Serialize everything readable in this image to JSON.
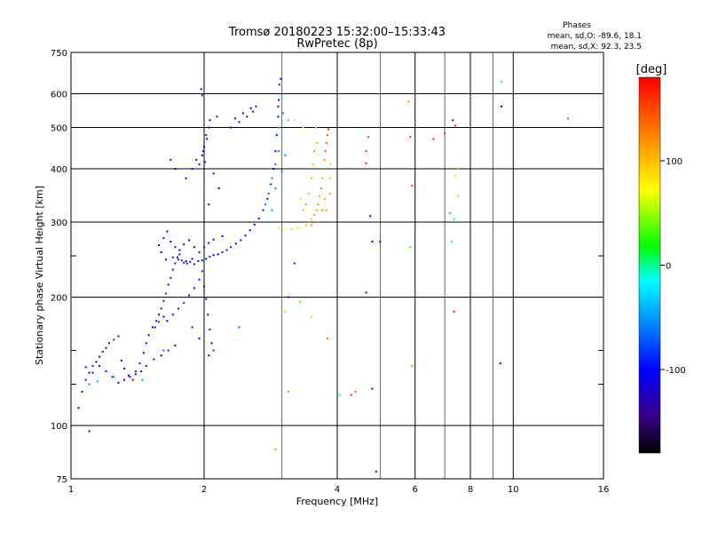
{
  "header": {
    "title": "Tromsø 20180223 15:32:00–15:33:43",
    "subtitle": "RwPretec (8p)"
  },
  "stats": {
    "heading": "Phases",
    "line_o": "mean, sd,O: -89.6, 18.1",
    "line_x": "mean, sd,X: 92.3, 23.5"
  },
  "colorbar": {
    "label": "[deg]",
    "ticks": [
      {
        "value": 100,
        "label": "100"
      },
      {
        "value": 0,
        "label": "0"
      },
      {
        "value": -100,
        "label": "-100"
      }
    ],
    "range": [
      -180,
      180
    ]
  },
  "chart_data": {
    "type": "scatter",
    "xlabel": "Frequency [MHz]",
    "ylabel": "Stationary phase Virtual Height [km]",
    "xscale": "log",
    "yscale": "log",
    "xlim": [
      1,
      16
    ],
    "ylim": [
      75,
      750
    ],
    "x_ticks": [
      1,
      2,
      4,
      6,
      8,
      10,
      16
    ],
    "x_tick_labels": [
      "1",
      "2",
      "4",
      "6",
      "8",
      "10",
      "16"
    ],
    "x_minor_ticks": [
      3,
      5,
      7,
      9
    ],
    "y_ticks": [
      75,
      100,
      200,
      300,
      400,
      500,
      600,
      750
    ],
    "y_tick_labels": [
      "75",
      "100",
      "200",
      "300",
      "400",
      "500",
      "600",
      "750"
    ],
    "y_minor_ticks": [
      125,
      150,
      250
    ],
    "grid": true,
    "color_dimension": "phase [deg]",
    "points": [
      [
        1.04,
        110,
        -110
      ],
      [
        1.06,
        120,
        -100
      ],
      [
        1.08,
        128,
        -95
      ],
      [
        1.1,
        133,
        -105
      ],
      [
        1.12,
        138,
        -90
      ],
      [
        1.14,
        141,
        -110
      ],
      [
        1.16,
        145,
        -100
      ],
      [
        1.18,
        149,
        -95
      ],
      [
        1.2,
        152,
        -115
      ],
      [
        1.22,
        156,
        -100
      ],
      [
        1.25,
        159,
        -90
      ],
      [
        1.28,
        162,
        -110
      ],
      [
        1.3,
        142,
        -105
      ],
      [
        1.32,
        136,
        -95
      ],
      [
        1.35,
        131,
        -100
      ],
      [
        1.38,
        128,
        -115
      ],
      [
        1.4,
        134,
        -90
      ],
      [
        1.43,
        140,
        -100
      ],
      [
        1.46,
        148,
        -110
      ],
      [
        1.48,
        156,
        -95
      ],
      [
        1.5,
        163,
        -100
      ],
      [
        1.53,
        170,
        -120
      ],
      [
        1.56,
        176,
        -105
      ],
      [
        1.58,
        182,
        -95
      ],
      [
        1.6,
        188,
        -100
      ],
      [
        1.62,
        196,
        -110
      ],
      [
        1.64,
        204,
        -90
      ],
      [
        1.66,
        214,
        -100
      ],
      [
        1.68,
        222,
        -115
      ],
      [
        1.7,
        232,
        -105
      ],
      [
        1.72,
        240,
        -95
      ],
      [
        1.74,
        248,
        -110
      ],
      [
        1.76,
        252,
        -100
      ],
      [
        1.78,
        244,
        -90
      ],
      [
        1.8,
        241,
        -105
      ],
      [
        1.83,
        240,
        -115
      ],
      [
        1.86,
        242,
        -100
      ],
      [
        1.9,
        239,
        -95
      ],
      [
        1.94,
        243,
        -110
      ],
      [
        1.98,
        244,
        -100
      ],
      [
        2.02,
        246,
        -105
      ],
      [
        2.06,
        249,
        -90
      ],
      [
        2.1,
        251,
        -110
      ],
      [
        2.15,
        252,
        -100
      ],
      [
        2.2,
        255,
        -95
      ],
      [
        2.25,
        258,
        -105
      ],
      [
        2.3,
        262,
        -110
      ],
      [
        2.36,
        267,
        -100
      ],
      [
        2.42,
        272,
        -95
      ],
      [
        2.48,
        279,
        -105
      ],
      [
        2.54,
        287,
        -100
      ],
      [
        2.6,
        296,
        -110
      ],
      [
        2.66,
        306,
        -95
      ],
      [
        2.72,
        320,
        -100
      ],
      [
        2.78,
        340,
        -105
      ],
      [
        2.83,
        368,
        -90
      ],
      [
        2.87,
        400,
        -110
      ],
      [
        2.9,
        440,
        -100
      ],
      [
        2.92,
        480,
        -95
      ],
      [
        2.94,
        530,
        -105
      ],
      [
        2.95,
        580,
        -120
      ],
      [
        2.96,
        630,
        -130
      ],
      [
        2.98,
        650,
        -90
      ],
      [
        3.0,
        590,
        -20
      ],
      [
        2.94,
        560,
        -140
      ],
      [
        1.55,
        170,
        -90
      ],
      [
        1.58,
        175,
        -80
      ],
      [
        1.62,
        180,
        -100
      ],
      [
        1.65,
        176,
        -110
      ],
      [
        1.7,
        182,
        -95
      ],
      [
        1.75,
        188,
        -100
      ],
      [
        1.8,
        194,
        -90
      ],
      [
        1.85,
        202,
        -105
      ],
      [
        1.9,
        210,
        -110
      ],
      [
        1.95,
        220,
        -100
      ],
      [
        1.98,
        230,
        -95
      ],
      [
        2.0,
        212,
        -105
      ],
      [
        2.02,
        198,
        -100
      ],
      [
        2.04,
        182,
        -110
      ],
      [
        2.06,
        168,
        -95
      ],
      [
        2.08,
        156,
        -100
      ],
      [
        2.1,
        150,
        -85
      ],
      [
        2.05,
        146,
        -95
      ],
      [
        1.95,
        160,
        -100
      ],
      [
        1.88,
        170,
        -110
      ],
      [
        1.72,
        154,
        -100
      ],
      [
        1.66,
        150,
        -90
      ],
      [
        1.6,
        146,
        -105
      ],
      [
        1.54,
        143,
        -100
      ],
      [
        1.48,
        138,
        -110
      ],
      [
        1.44,
        134,
        -95
      ],
      [
        1.4,
        132,
        -100
      ],
      [
        1.36,
        130,
        -120
      ],
      [
        1.32,
        128,
        -105
      ],
      [
        1.28,
        126,
        -100
      ],
      [
        1.24,
        130,
        -90
      ],
      [
        1.2,
        134,
        -110
      ],
      [
        1.16,
        138,
        -100
      ],
      [
        1.12,
        133,
        -95
      ],
      [
        1.08,
        137,
        -105
      ],
      [
        1.1,
        125,
        -60
      ],
      [
        1.15,
        127,
        -40
      ],
      [
        1.25,
        130,
        -45
      ],
      [
        1.45,
        128,
        -50
      ],
      [
        1.62,
        150,
        -60
      ],
      [
        1.6,
        255,
        -100
      ],
      [
        1.58,
        265,
        -110
      ],
      [
        1.62,
        275,
        -95
      ],
      [
        1.65,
        285,
        -100
      ],
      [
        1.68,
        270,
        -105
      ],
      [
        1.72,
        262,
        -110
      ],
      [
        1.76,
        258,
        -100
      ],
      [
        1.8,
        266,
        -95
      ],
      [
        1.85,
        272,
        -105
      ],
      [
        1.9,
        262,
        -110
      ],
      [
        1.95,
        255,
        -100
      ],
      [
        2.0,
        262,
        -90
      ],
      [
        2.05,
        268,
        -105
      ],
      [
        2.1,
        273,
        -100
      ],
      [
        2.2,
        278,
        -110
      ],
      [
        1.64,
        245,
        -100
      ],
      [
        1.7,
        248,
        -95
      ],
      [
        1.75,
        245,
        -110
      ],
      [
        1.82,
        243,
        -100
      ],
      [
        1.88,
        246,
        -105
      ],
      [
        1.92,
        420,
        -130
      ],
      [
        1.95,
        410,
        -140
      ],
      [
        1.98,
        430,
        -120
      ],
      [
        2.0,
        450,
        -130
      ],
      [
        2.02,
        480,
        -125
      ],
      [
        2.05,
        500,
        -140
      ],
      [
        2.06,
        520,
        -135
      ],
      [
        2.03,
        470,
        -120
      ],
      [
        1.99,
        440,
        -130
      ],
      [
        2.01,
        415,
        -140
      ],
      [
        1.98,
        595,
        -130
      ],
      [
        1.97,
        615,
        -140
      ],
      [
        2.14,
        530,
        -110
      ],
      [
        1.68,
        420,
        -120
      ],
      [
        1.72,
        400,
        -110
      ],
      [
        1.82,
        380,
        -100
      ],
      [
        1.88,
        400,
        -110
      ],
      [
        2.1,
        390,
        -100
      ],
      [
        2.16,
        360,
        -105
      ],
      [
        2.05,
        330,
        -100
      ],
      [
        2.3,
        500,
        -95
      ],
      [
        2.4,
        515,
        -100
      ],
      [
        2.5,
        530,
        -105
      ],
      [
        2.58,
        545,
        -100
      ],
      [
        2.62,
        560,
        -95
      ],
      [
        2.55,
        555,
        -110
      ],
      [
        2.45,
        540,
        -100
      ],
      [
        2.35,
        525,
        -105
      ],
      [
        2.75,
        330,
        -60
      ],
      [
        2.8,
        350,
        -70
      ],
      [
        2.85,
        380,
        -55
      ],
      [
        2.9,
        410,
        -65
      ],
      [
        2.95,
        440,
        -60
      ],
      [
        2.8,
        300,
        -50
      ],
      [
        2.85,
        320,
        -45
      ],
      [
        2.9,
        360,
        -55
      ],
      [
        3.0,
        395,
        -60
      ],
      [
        3.05,
        430,
        -50
      ],
      [
        2.95,
        500,
        -40
      ],
      [
        3.02,
        540,
        -55
      ],
      [
        3.1,
        520,
        -30
      ],
      [
        2.95,
        290,
        60
      ],
      [
        3.05,
        288,
        70
      ],
      [
        3.15,
        289,
        50
      ],
      [
        3.25,
        291,
        65
      ],
      [
        3.3,
        290,
        75
      ],
      [
        3.4,
        295,
        110
      ],
      [
        3.45,
        300,
        120
      ],
      [
        3.5,
        305,
        100
      ],
      [
        3.55,
        312,
        115
      ],
      [
        3.6,
        320,
        110
      ],
      [
        3.62,
        330,
        125
      ],
      [
        3.65,
        345,
        110
      ],
      [
        3.68,
        360,
        120
      ],
      [
        3.7,
        380,
        115
      ],
      [
        3.72,
        400,
        130
      ],
      [
        3.74,
        420,
        125
      ],
      [
        3.76,
        440,
        140
      ],
      [
        3.78,
        460,
        150
      ],
      [
        3.8,
        480,
        145
      ],
      [
        3.82,
        495,
        170
      ],
      [
        3.45,
        350,
        100
      ],
      [
        3.5,
        380,
        110
      ],
      [
        3.52,
        410,
        105
      ],
      [
        3.55,
        440,
        115
      ],
      [
        3.4,
        330,
        110
      ],
      [
        3.35,
        320,
        105
      ],
      [
        3.5,
        295,
        120
      ],
      [
        3.62,
        300,
        115
      ],
      [
        3.7,
        320,
        120
      ],
      [
        3.75,
        340,
        110
      ],
      [
        3.85,
        380,
        95
      ],
      [
        3.86,
        410,
        100
      ],
      [
        3.85,
        350,
        115
      ],
      [
        3.78,
        320,
        120
      ],
      [
        3.3,
        340,
        90
      ],
      [
        3.2,
        520,
        80
      ],
      [
        3.35,
        500,
        70
      ],
      [
        3.6,
        460,
        110
      ],
      [
        3.58,
        500,
        105
      ],
      [
        2.4,
        170,
        -70
      ],
      [
        3.05,
        185,
        40
      ],
      [
        3.1,
        200,
        -110
      ],
      [
        3.2,
        240,
        -90
      ],
      [
        3.3,
        195,
        30
      ],
      [
        3.5,
        180,
        100
      ],
      [
        3.8,
        160,
        140
      ],
      [
        3.1,
        120,
        130
      ],
      [
        4.05,
        118,
        -10
      ],
      [
        4.3,
        118,
        170
      ],
      [
        4.4,
        120,
        140
      ],
      [
        4.8,
        122,
        -120
      ],
      [
        4.65,
        412,
        170
      ],
      [
        4.65,
        440,
        165
      ],
      [
        4.7,
        475,
        160
      ],
      [
        4.75,
        310,
        -110
      ],
      [
        4.8,
        270,
        -110
      ],
      [
        5.0,
        270,
        -100
      ],
      [
        4.65,
        205,
        -140
      ],
      [
        4.9,
        78,
        -130
      ],
      [
        5.8,
        575,
        130
      ],
      [
        5.85,
        475,
        160
      ],
      [
        5.9,
        365,
        155
      ],
      [
        5.85,
        262,
        30
      ],
      [
        5.9,
        138,
        120
      ],
      [
        6.6,
        470,
        170
      ],
      [
        7.0,
        485,
        165
      ],
      [
        7.2,
        315,
        -40
      ],
      [
        7.35,
        305,
        20
      ],
      [
        7.25,
        270,
        -15
      ],
      [
        7.35,
        185,
        175
      ],
      [
        7.3,
        520,
        -150
      ],
      [
        7.4,
        505,
        160
      ],
      [
        7.5,
        400,
        110
      ],
      [
        7.4,
        385,
        60
      ],
      [
        7.5,
        345,
        90
      ],
      [
        9.4,
        560,
        -150
      ],
      [
        9.4,
        640,
        0
      ],
      [
        9.35,
        140,
        -110
      ],
      [
        13.3,
        525,
        160
      ],
      [
        1.1,
        97,
        -140
      ],
      [
        2.9,
        88,
        130
      ]
    ]
  }
}
